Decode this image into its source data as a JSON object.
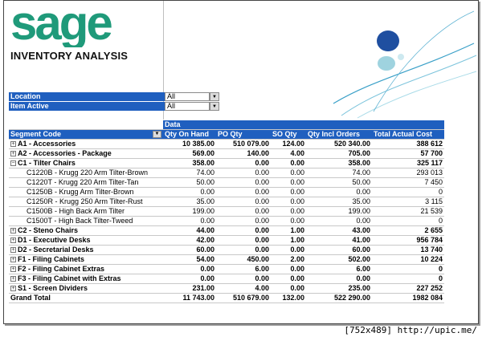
{
  "app": {
    "logo_text": "sage",
    "title": "INVENTORY ANALYSIS",
    "brand_color": "#1f9a7a",
    "header_color": "#1f5fbf"
  },
  "filters": [
    {
      "label": "Location",
      "value": "All"
    },
    {
      "label": "Item Active",
      "value": "All"
    }
  ],
  "table": {
    "data_label": "Data",
    "columns": [
      "Segment Code",
      "Qty On Hand",
      "PO Qty",
      "SO Qty",
      "Qty Incl Orders",
      "Total Actual Cost"
    ],
    "rows": [
      {
        "code": "A1 - Accessories",
        "level": "group",
        "expander": "+",
        "values": [
          "10 385.00",
          "510 079.00",
          "124.00",
          "520 340.00",
          "388 612"
        ]
      },
      {
        "code": "A2 - Accessories - Package",
        "level": "group",
        "expander": "+",
        "values": [
          "569.00",
          "140.00",
          "4.00",
          "705.00",
          "57 700"
        ]
      },
      {
        "code": "C1 - Tilter Chairs",
        "level": "group",
        "expander": "−",
        "values": [
          "358.00",
          "0.00",
          "0.00",
          "358.00",
          "325 117"
        ]
      },
      {
        "code": "C1220B - Krugg 220 Arm Tilter-Brown",
        "level": "item",
        "values": [
          "74.00",
          "0.00",
          "0.00",
          "74.00",
          "293 013"
        ]
      },
      {
        "code": "C1220T - Krugg 220 Arm Tilter-Tan",
        "level": "item",
        "values": [
          "50.00",
          "0.00",
          "0.00",
          "50.00",
          "7 450"
        ]
      },
      {
        "code": "C1250B - Krugg Arm Tilter-Brown",
        "level": "item",
        "values": [
          "0.00",
          "0.00",
          "0.00",
          "0.00",
          "0"
        ]
      },
      {
        "code": "C1250R - Krugg 250 Arm Tilter-Rust",
        "level": "item",
        "values": [
          "35.00",
          "0.00",
          "0.00",
          "35.00",
          "3 115"
        ]
      },
      {
        "code": "C1500B - High Back Arm Tilter",
        "level": "item",
        "values": [
          "199.00",
          "0.00",
          "0.00",
          "199.00",
          "21 539"
        ]
      },
      {
        "code": "C1500T - High Back Tilter-Tweed",
        "level": "item",
        "values": [
          "0.00",
          "0.00",
          "0.00",
          "0.00",
          "0"
        ]
      },
      {
        "code": "C2 - Steno Chairs",
        "level": "group",
        "expander": "+",
        "values": [
          "44.00",
          "0.00",
          "1.00",
          "43.00",
          "2 655"
        ]
      },
      {
        "code": "D1 - Executive Desks",
        "level": "group",
        "expander": "+",
        "values": [
          "42.00",
          "0.00",
          "1.00",
          "41.00",
          "956 784"
        ]
      },
      {
        "code": "D2 - Secretarial Desks",
        "level": "group",
        "expander": "+",
        "values": [
          "60.00",
          "0.00",
          "0.00",
          "60.00",
          "13 740"
        ]
      },
      {
        "code": "F1 - Filing Cabinets",
        "level": "group",
        "expander": "+",
        "values": [
          "54.00",
          "450.00",
          "2.00",
          "502.00",
          "10 224"
        ]
      },
      {
        "code": "F2 - Filing Cabinet Extras",
        "level": "group",
        "expander": "+",
        "values": [
          "0.00",
          "6.00",
          "0.00",
          "6.00",
          "0"
        ]
      },
      {
        "code": "F3 - Filing Cabinet with Extras",
        "level": "group",
        "expander": "+",
        "values": [
          "0.00",
          "0.00",
          "0.00",
          "0.00",
          "0"
        ]
      },
      {
        "code": "S1 - Screen Dividers",
        "level": "group",
        "expander": "+",
        "values": [
          "231.00",
          "4.00",
          "0.00",
          "235.00",
          "227 252"
        ]
      }
    ],
    "grand_total": {
      "label": "Grand Total",
      "values": [
        "11 743.00",
        "510 679.00",
        "132.00",
        "522 290.00",
        "1982 084"
      ]
    }
  },
  "footer": {
    "text": "[752x489] http://upic.me/"
  }
}
